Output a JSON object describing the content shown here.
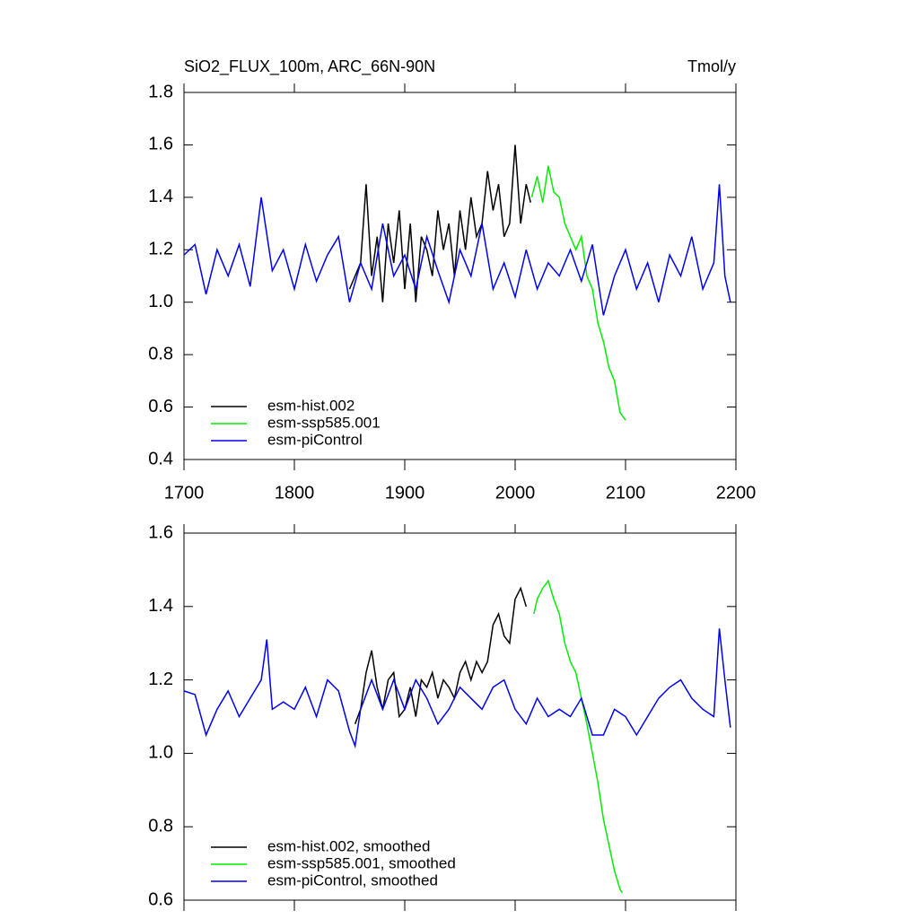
{
  "chart_data": [
    {
      "type": "line",
      "title": "SiO2_FLUX_100m, ARC_66N-90N",
      "units": "Tmol/y",
      "xlim": [
        1700,
        2200
      ],
      "xticks": [
        1700,
        1800,
        1900,
        2000,
        2100,
        2200
      ],
      "ylim": [
        0.4,
        1.8
      ],
      "yticks": [
        0.4,
        0.6,
        0.8,
        {
          "value": 1,
          "label": "1.0"
        },
        1.2,
        1.4,
        1.6,
        1.8
      ],
      "legend": "lower left",
      "series": [
        {
          "name": "esm-hist.002",
          "color": "#000000",
          "x": [
            1850,
            1855,
            1860,
            1865,
            1870,
            1875,
            1880,
            1885,
            1890,
            1895,
            1900,
            1905,
            1910,
            1915,
            1920,
            1925,
            1930,
            1935,
            1940,
            1945,
            1950,
            1955,
            1960,
            1965,
            1970,
            1975,
            1980,
            1985,
            1990,
            1995,
            2000,
            2005,
            2010,
            2014
          ],
          "values": [
            1.05,
            1.1,
            1.15,
            1.45,
            1.1,
            1.25,
            1.0,
            1.3,
            1.15,
            1.35,
            1.05,
            1.3,
            1.0,
            1.25,
            1.2,
            1.1,
            1.35,
            1.2,
            1.3,
            1.1,
            1.35,
            1.2,
            1.4,
            1.25,
            1.3,
            1.5,
            1.35,
            1.45,
            1.25,
            1.3,
            1.6,
            1.3,
            1.45,
            1.38
          ]
        },
        {
          "name": "esm-ssp585.001",
          "color": "#00ee00",
          "x": [
            2015,
            2020,
            2025,
            2030,
            2035,
            2040,
            2045,
            2050,
            2055,
            2060,
            2065,
            2070,
            2075,
            2080,
            2085,
            2090,
            2095,
            2100
          ],
          "values": [
            1.4,
            1.48,
            1.38,
            1.52,
            1.42,
            1.4,
            1.3,
            1.25,
            1.2,
            1.25,
            1.1,
            1.05,
            0.92,
            0.85,
            0.75,
            0.7,
            0.58,
            0.55
          ]
        },
        {
          "name": "esm-piControl",
          "color": "#0000ee",
          "x": [
            1700,
            1710,
            1720,
            1730,
            1740,
            1750,
            1760,
            1770,
            1780,
            1790,
            1800,
            1810,
            1820,
            1830,
            1840,
            1850,
            1860,
            1870,
            1880,
            1890,
            1900,
            1910,
            1920,
            1930,
            1940,
            1950,
            1960,
            1970,
            1980,
            1990,
            2000,
            2010,
            2020,
            2030,
            2040,
            2050,
            2060,
            2070,
            2080,
            2090,
            2100,
            2110,
            2120,
            2130,
            2140,
            2150,
            2160,
            2170,
            2180,
            2185,
            2190,
            2195
          ],
          "values": [
            1.18,
            1.22,
            1.03,
            1.2,
            1.1,
            1.22,
            1.06,
            1.4,
            1.12,
            1.2,
            1.05,
            1.22,
            1.08,
            1.18,
            1.25,
            1.0,
            1.15,
            1.05,
            1.3,
            1.1,
            1.18,
            1.05,
            1.25,
            1.12,
            1.0,
            1.2,
            1.1,
            1.3,
            1.05,
            1.15,
            1.02,
            1.2,
            1.05,
            1.15,
            1.1,
            1.2,
            1.08,
            1.22,
            0.95,
            1.1,
            1.2,
            1.05,
            1.15,
            1.0,
            1.18,
            1.1,
            1.25,
            1.05,
            1.15,
            1.45,
            1.1,
            1.0
          ]
        }
      ]
    },
    {
      "type": "line",
      "xlim": [
        1700,
        2200
      ],
      "xticks": [
        1700,
        1800,
        1900,
        2000,
        2100,
        2200
      ],
      "ylim": [
        0.6,
        1.6
      ],
      "yticks": [
        0.6,
        0.8,
        {
          "value": 1,
          "label": "1.0"
        },
        1.2,
        1.4,
        1.6
      ],
      "legend": "lower left",
      "series": [
        {
          "name": "esm-hist.002, smoothed",
          "color": "#000000",
          "x": [
            1855,
            1860,
            1865,
            1870,
            1875,
            1880,
            1885,
            1890,
            1895,
            1900,
            1905,
            1910,
            1915,
            1920,
            1925,
            1930,
            1935,
            1940,
            1945,
            1950,
            1955,
            1960,
            1965,
            1970,
            1975,
            1980,
            1985,
            1990,
            1995,
            2000,
            2005,
            2010
          ],
          "values": [
            1.08,
            1.12,
            1.22,
            1.28,
            1.18,
            1.12,
            1.2,
            1.22,
            1.1,
            1.12,
            1.18,
            1.1,
            1.2,
            1.18,
            1.22,
            1.15,
            1.2,
            1.18,
            1.15,
            1.22,
            1.25,
            1.2,
            1.25,
            1.22,
            1.25,
            1.35,
            1.38,
            1.32,
            1.3,
            1.42,
            1.45,
            1.4
          ]
        },
        {
          "name": "esm-ssp585.001, smoothed",
          "color": "#00ee00",
          "x": [
            2017,
            2020,
            2025,
            2030,
            2035,
            2040,
            2045,
            2050,
            2055,
            2060,
            2065,
            2070,
            2075,
            2080,
            2085,
            2090,
            2095,
            2097
          ],
          "values": [
            1.38,
            1.42,
            1.45,
            1.47,
            1.42,
            1.38,
            1.3,
            1.25,
            1.22,
            1.15,
            1.08,
            1.0,
            0.92,
            0.82,
            0.75,
            0.68,
            0.63,
            0.62
          ]
        },
        {
          "name": "esm-piControl, smoothed",
          "color": "#0000ee",
          "x": [
            1700,
            1710,
            1720,
            1730,
            1740,
            1750,
            1760,
            1770,
            1775,
            1780,
            1790,
            1800,
            1810,
            1820,
            1830,
            1840,
            1850,
            1855,
            1860,
            1870,
            1880,
            1890,
            1900,
            1910,
            1920,
            1930,
            1940,
            1950,
            1960,
            1970,
            1980,
            1990,
            2000,
            2010,
            2020,
            2030,
            2040,
            2050,
            2060,
            2070,
            2080,
            2090,
            2100,
            2110,
            2120,
            2130,
            2140,
            2150,
            2160,
            2170,
            2180,
            2185,
            2190,
            2195
          ],
          "values": [
            1.17,
            1.16,
            1.05,
            1.12,
            1.17,
            1.1,
            1.15,
            1.2,
            1.31,
            1.12,
            1.14,
            1.12,
            1.18,
            1.1,
            1.2,
            1.17,
            1.06,
            1.02,
            1.12,
            1.2,
            1.12,
            1.2,
            1.12,
            1.2,
            1.15,
            1.08,
            1.12,
            1.18,
            1.15,
            1.12,
            1.18,
            1.2,
            1.12,
            1.08,
            1.15,
            1.1,
            1.12,
            1.1,
            1.15,
            1.05,
            1.05,
            1.12,
            1.1,
            1.05,
            1.1,
            1.15,
            1.18,
            1.2,
            1.15,
            1.12,
            1.1,
            1.34,
            1.2,
            1.07
          ]
        }
      ]
    }
  ]
}
